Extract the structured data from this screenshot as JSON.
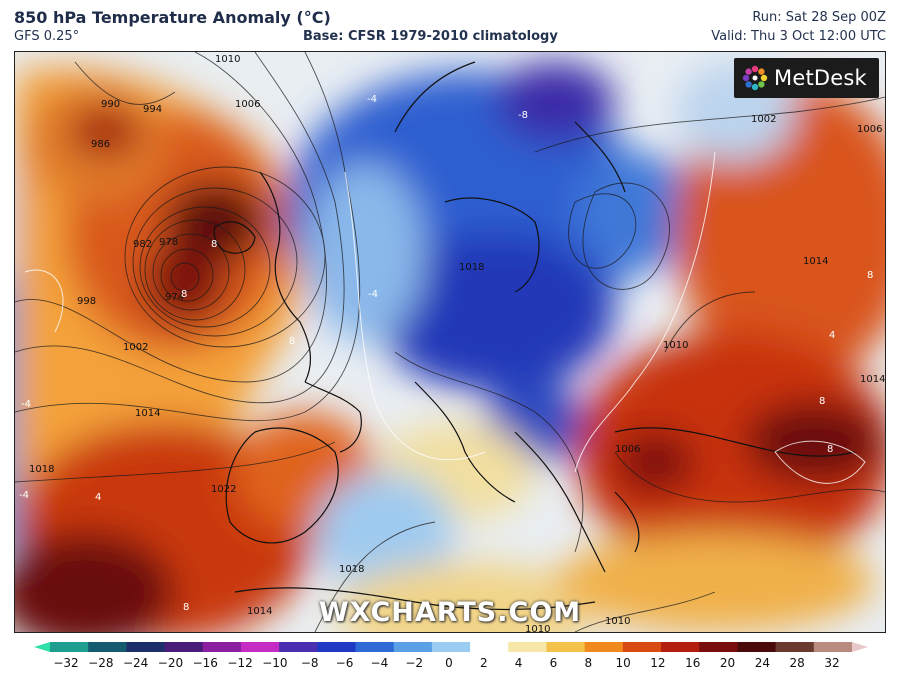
{
  "header": {
    "title": "850 hPa Temperature Anomaly (°C)",
    "model": "GFS 0.25°",
    "base": "Base: CFSR 1979-2010 climatology",
    "run": "Run: Sat 28 Sep 00Z",
    "valid": "Valid: Thu 3 Oct 12:00 UTC"
  },
  "logo": {
    "name": "MetDesk",
    "icon": "metdesk-burst-icon"
  },
  "watermark": "WXCHARTS.COM",
  "map": {
    "isobar_labels": [
      "1010",
      "1006",
      "990",
      "994",
      "986",
      "982",
      "978",
      "974",
      "998",
      "1002",
      "1014",
      "1018",
      "1022",
      "1002",
      "1006",
      "1018",
      "1010",
      "1018",
      "1006",
      "1014",
      "1010",
      "1010",
      "1014",
      "1014"
    ],
    "anomaly_labels": [
      "-8",
      "-4",
      "8",
      "8",
      "8",
      "-4",
      "4",
      "-4",
      "8",
      "4",
      "8",
      "8",
      "-4",
      "8"
    ]
  },
  "legend": {
    "ticks": [
      "−32",
      "−28",
      "−24",
      "−20",
      "−16",
      "−12",
      "−10",
      "−8",
      "−6",
      "−4",
      "−2",
      "0",
      "2",
      "4",
      "6",
      "8",
      "10",
      "12",
      "16",
      "20",
      "24",
      "28",
      "32"
    ],
    "colors": [
      "#2fe0a8",
      "#1f9e90",
      "#155b70",
      "#1d2f6a",
      "#4a1c7a",
      "#8c1fa0",
      "#c42cc4",
      "#4b2fb0",
      "#1f39c4",
      "#2d6ad6",
      "#5aa0e6",
      "#9bcdf2",
      "#ffffff",
      "#f6e6a8",
      "#f4c24a",
      "#f08a1e",
      "#d94a12",
      "#b41e0e",
      "#7a0e0e",
      "#4a0a0a",
      "#6a3a30",
      "#b88a80",
      "#e8c8c8"
    ]
  }
}
